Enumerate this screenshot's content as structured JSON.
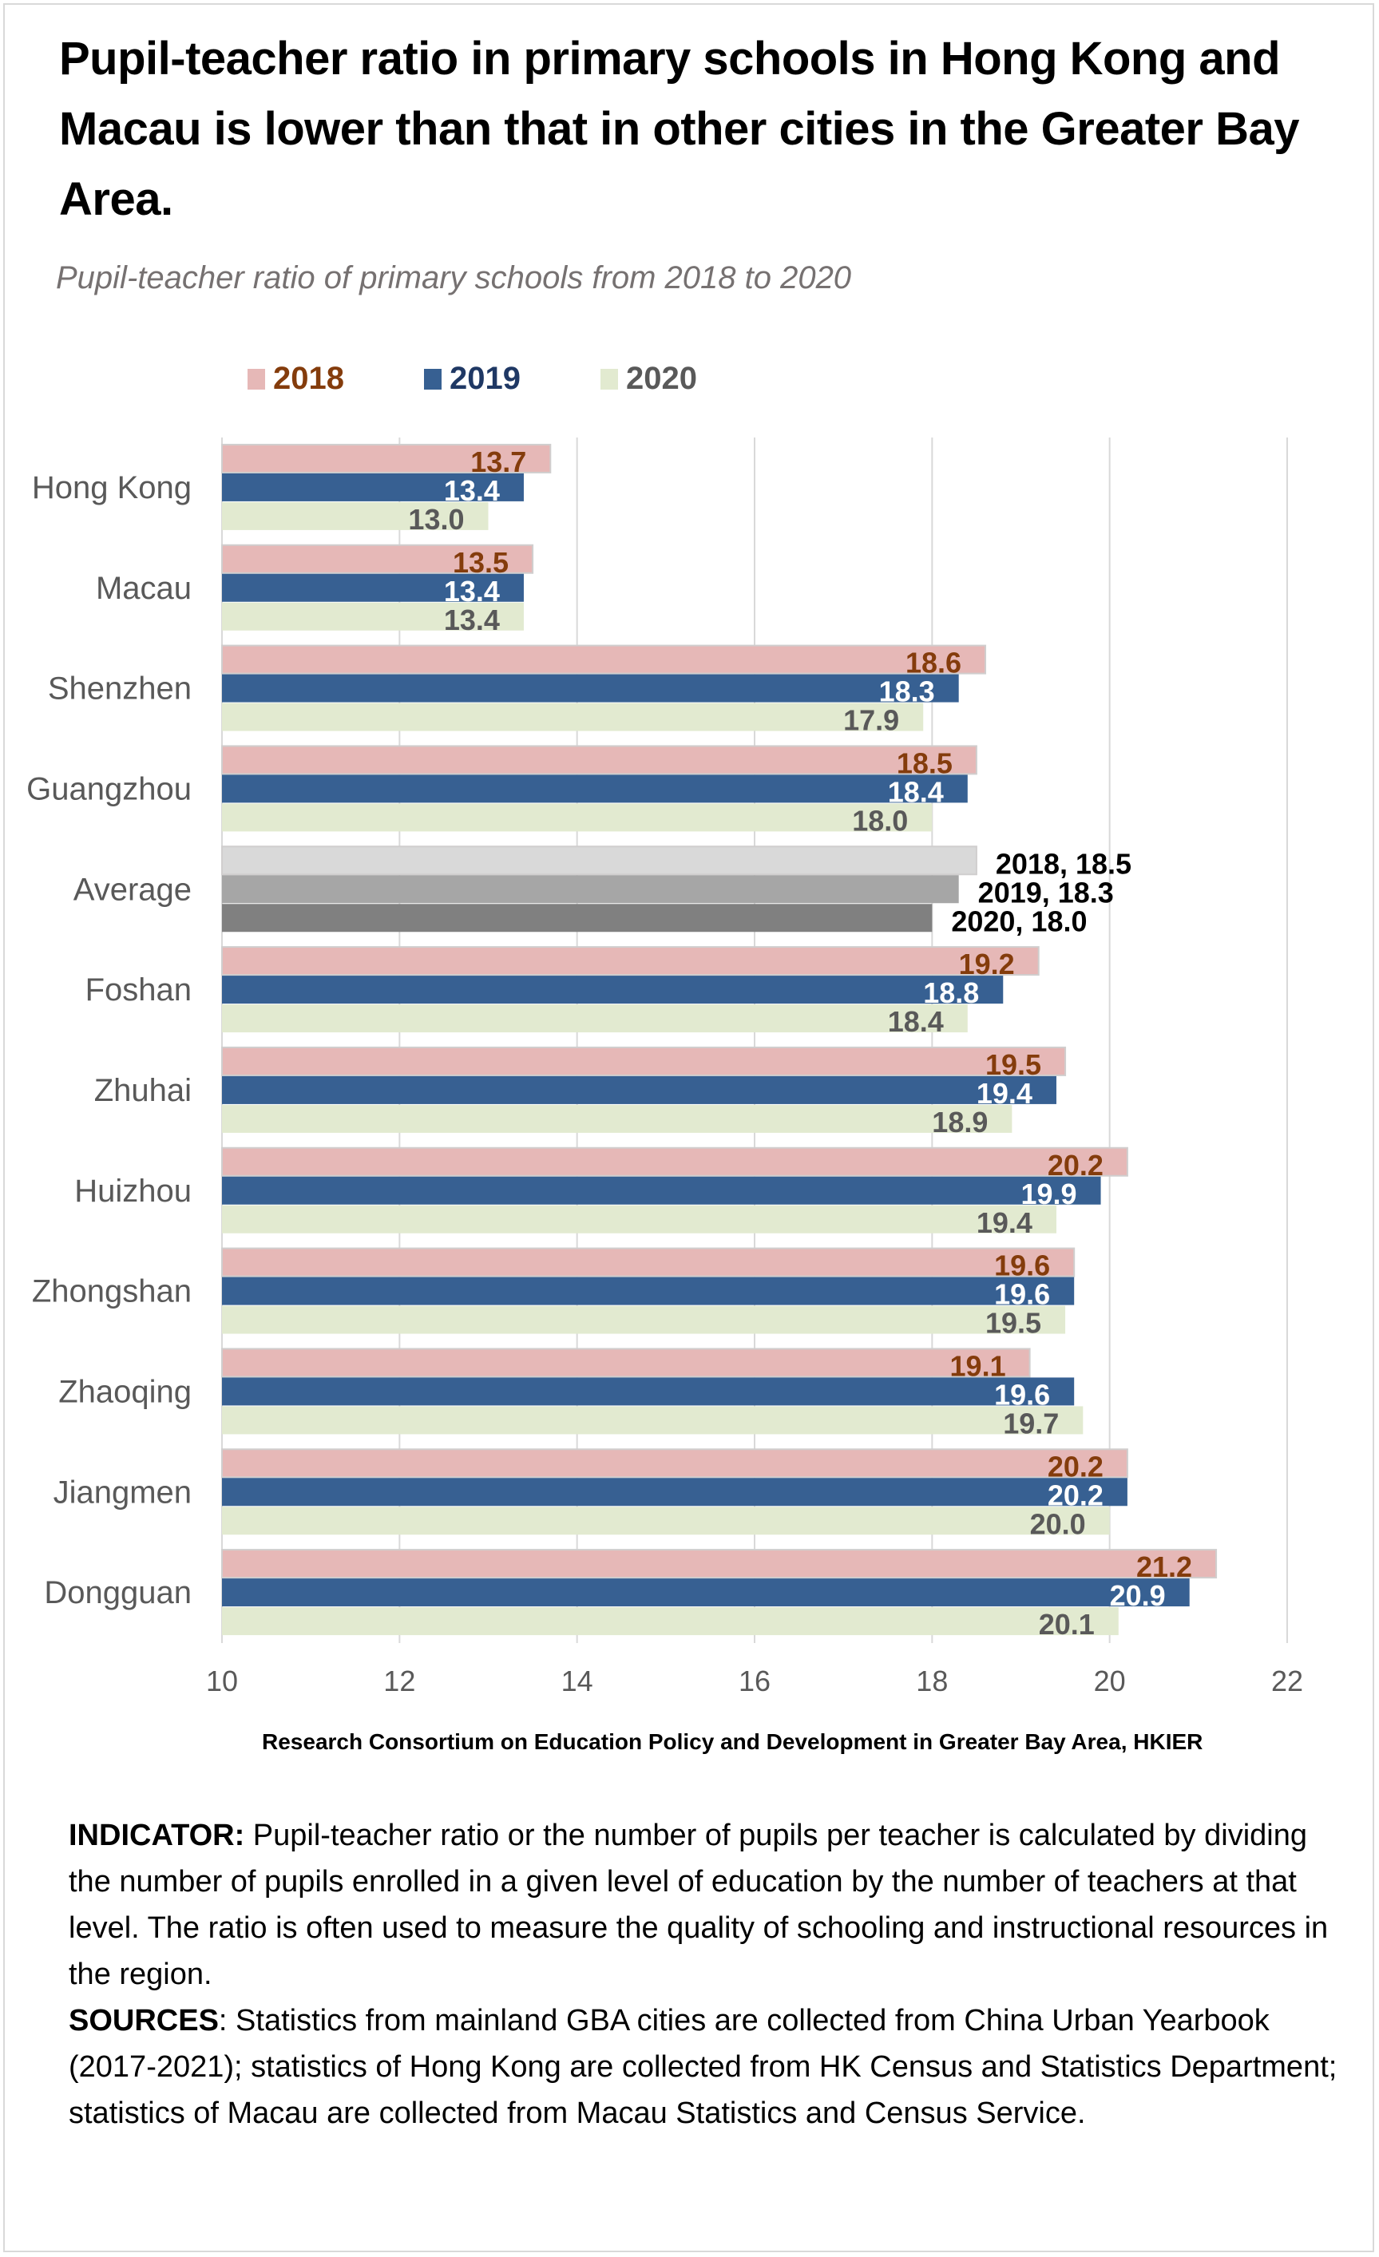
{
  "title": "Pupil-teacher ratio in primary schools in Hong Kong and Macau is lower than that in other cities in the Greater Bay Area.",
  "subtitle": "Pupil-teacher ratio of primary schools from 2018 to 2020",
  "legend": [
    {
      "label": "2018",
      "swatch": "#e6b8b7",
      "text_color": "#843c0c"
    },
    {
      "label": "2019",
      "swatch": "#376092",
      "text_color": "#1f3864"
    },
    {
      "label": "2020",
      "swatch": "#e2ead0",
      "text_color": "#595959"
    }
  ],
  "source_credit": "Research Consortium on Education Policy and Development in Greater Bay Area, HKIER",
  "notes": {
    "indicator_label": "INDICATOR:",
    "indicator_text": " Pupil-teacher ratio or the number of pupils per teacher is calculated by dividing the number of pupils enrolled in a given level of education by the number of teachers at that level. The ratio is often used to measure the quality of schooling and instructional resources in the region.",
    "sources_label": "SOURCES",
    "sources_text": ":  Statistics from mainland GBA cities are collected from China Urban Yearbook (2017-2021); statistics of Hong Kong  are  collected from HK Census and Statistics Department; statistics  of Macau are collected from Macau Statistics and Census Service."
  },
  "chart_data": {
    "type": "bar",
    "orientation": "horizontal",
    "title": "Pupil-teacher ratio of primary schools from 2018 to 2020",
    "xlabel": "",
    "ylabel": "",
    "xlim": [
      10,
      22
    ],
    "xticks": [
      10,
      12,
      14,
      16,
      18,
      20,
      22
    ],
    "grid": true,
    "legend_position": "top-left",
    "categories": [
      "Hong Kong",
      "Macau",
      "Shenzhen",
      "Guangzhou",
      "Average",
      "Foshan",
      "Zhuhai",
      "Huizhou",
      "Zhongshan",
      "Zhaoqing",
      "Jiangmen",
      "Dongguan"
    ],
    "series": [
      {
        "name": "2018",
        "color": "#e6b8b7",
        "label_color": "#843c0c",
        "values": [
          13.7,
          13.5,
          18.6,
          18.5,
          18.5,
          19.2,
          19.5,
          20.2,
          19.6,
          19.1,
          20.2,
          21.2
        ]
      },
      {
        "name": "2019",
        "color": "#376092",
        "label_color": "#ffffff",
        "values": [
          13.4,
          13.4,
          18.3,
          18.4,
          18.3,
          18.8,
          19.4,
          19.9,
          19.6,
          19.6,
          20.2,
          20.9
        ]
      },
      {
        "name": "2020",
        "color": "#e2ead0",
        "label_color": "#595959",
        "values": [
          13.0,
          13.4,
          17.9,
          18.0,
          18.0,
          18.4,
          18.9,
          19.4,
          19.5,
          19.7,
          20.0,
          20.1
        ]
      }
    ],
    "average_category": {
      "name": "Average",
      "colors": [
        "#d9d9d9",
        "#a6a6a6",
        "#808080"
      ],
      "labels": [
        "2018, 18.5",
        "2019, 18.3",
        "2020, 18.0"
      ],
      "label_color": "#000000"
    },
    "value_labels": [
      [
        "13.7",
        "13.4",
        "13.0"
      ],
      [
        "13.5",
        "13.4",
        "13.4"
      ],
      [
        "18.6",
        "18.3",
        "17.9"
      ],
      [
        "18.5",
        "18.4",
        "18.0"
      ],
      [
        "2018, 18.5",
        "2019, 18.3",
        "2020, 18.0"
      ],
      [
        "19.2",
        "18.8",
        "18.4"
      ],
      [
        "19.5",
        "19.4",
        "18.9"
      ],
      [
        "20.2",
        "19.9",
        "19.4"
      ],
      [
        "19.6",
        "19.6",
        "19.5"
      ],
      [
        "19.1",
        "19.6",
        "19.7"
      ],
      [
        "20.2",
        "20.2",
        "20.0"
      ],
      [
        "21.2",
        "20.9",
        "20.1"
      ]
    ]
  }
}
